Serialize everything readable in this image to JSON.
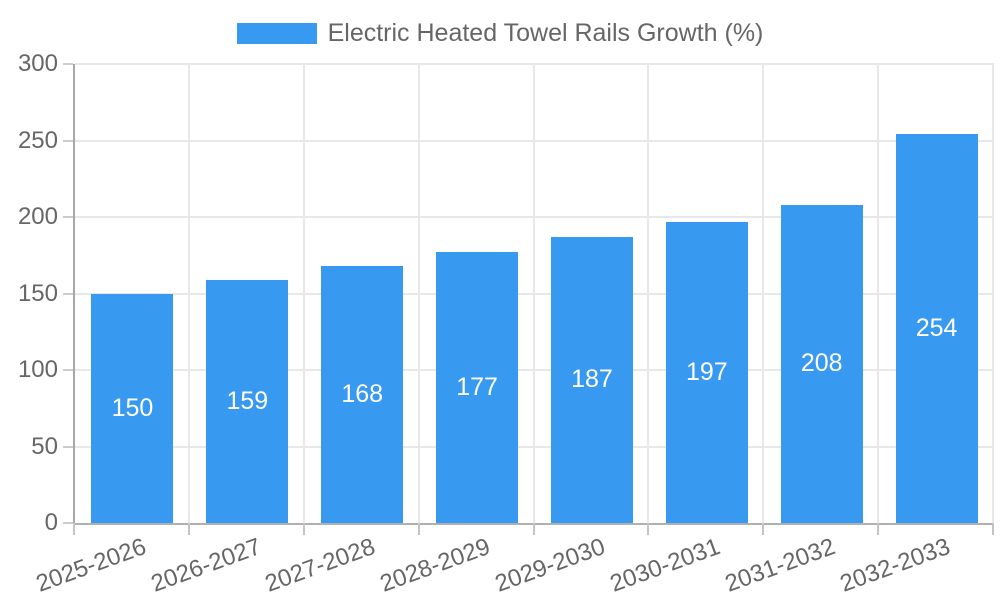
{
  "chart_data": {
    "type": "bar",
    "title": "Electric Heated Towel Rails Growth (%)",
    "legend_entries": [
      "Electric Heated Towel Rails Growth (%)"
    ],
    "legend_position": "top",
    "categories": [
      "2025-2026",
      "2026-2027",
      "2027-2028",
      "2028-2029",
      "2029-2030",
      "2030-2031",
      "2031-2032",
      "2032-2033"
    ],
    "series": [
      {
        "name": "Electric Heated Towel Rails Growth (%)",
        "values": [
          150,
          159,
          168,
          177,
          187,
          197,
          208,
          254
        ]
      }
    ],
    "xlabel": "",
    "ylabel": "",
    "ylim": [
      0,
      300
    ],
    "yticks": [
      0,
      50,
      100,
      150,
      200,
      250,
      300
    ],
    "grid": true,
    "value_labels": "inside-center",
    "colors": {
      "bar": "#3899f0",
      "value_label": "#ffffff",
      "axis_line": "#a8a8a8",
      "grid_line": "#e8e8e8",
      "tick_line": "#cccccc",
      "tick_label": "#666666",
      "title": "#666666",
      "background": "#ffffff"
    }
  }
}
